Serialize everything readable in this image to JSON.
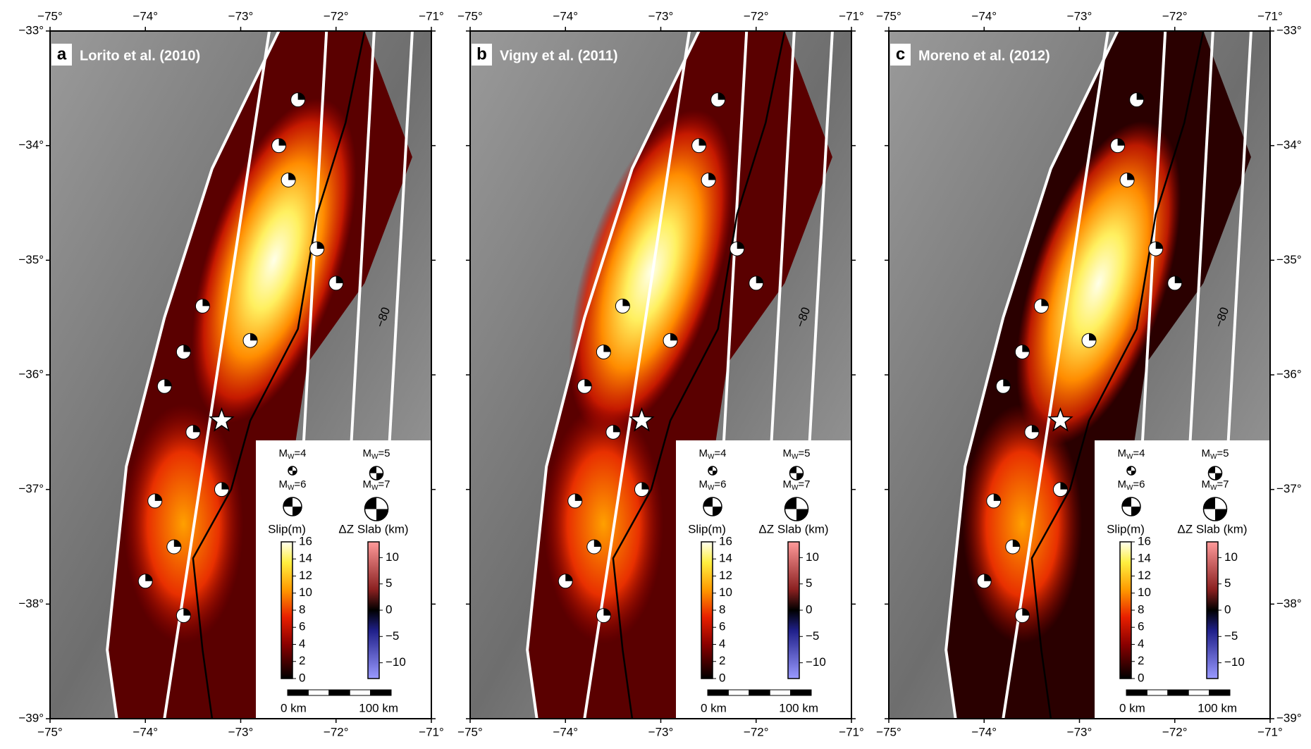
{
  "panels": [
    {
      "letter": "a",
      "title": "Lorito et al. (2010)"
    },
    {
      "letter": "b",
      "title": "Vigny et al. (2011)"
    },
    {
      "letter": "c",
      "title": "Moreno et al. (2012)"
    }
  ],
  "lon_lim": [
    -75,
    -71
  ],
  "lat_lim": [
    -33,
    -39
  ],
  "lon_ticks": [
    {
      "value": -75,
      "label": "−75°"
    },
    {
      "value": -74,
      "label": "−74°"
    },
    {
      "value": -73,
      "label": "−73°"
    },
    {
      "value": -72,
      "label": "−72°"
    },
    {
      "value": -71,
      "label": "−71°"
    }
  ],
  "lat_ticks": [
    {
      "value": -33,
      "label": "−33°"
    },
    {
      "value": -34,
      "label": "−34°"
    },
    {
      "value": -35,
      "label": "−35°"
    },
    {
      "value": -36,
      "label": "−36°"
    },
    {
      "value": -37,
      "label": "−37°"
    },
    {
      "value": -38,
      "label": "−38°"
    },
    {
      "value": -39,
      "label": "−39°"
    }
  ],
  "magnitudes": [
    {
      "symbol": "M",
      "subscript": "W",
      "value": "=4"
    },
    {
      "symbol": "M",
      "subscript": "W",
      "value": "=5"
    },
    {
      "symbol": "M",
      "subscript": "W",
      "value": "=6"
    },
    {
      "symbol": "M",
      "subscript": "W",
      "value": "=7"
    }
  ],
  "slip_label": "Slip(m)",
  "slip_lim": [
    0,
    16
  ],
  "slip_ticks": [
    0,
    2,
    4,
    6,
    8,
    10,
    12,
    14,
    16
  ],
  "dz_label": "ΔZ Slab (km)",
  "dz_lim": [
    -13,
    13
  ],
  "dz_ticks": [
    10,
    5,
    0,
    {
      "value": -5,
      "label": "−5"
    },
    {
      "value": -10,
      "label": "−10"
    }
  ],
  "slab_depth_label": "−80",
  "scale_labels": [
    "0 km",
    "100 km"
  ]
}
